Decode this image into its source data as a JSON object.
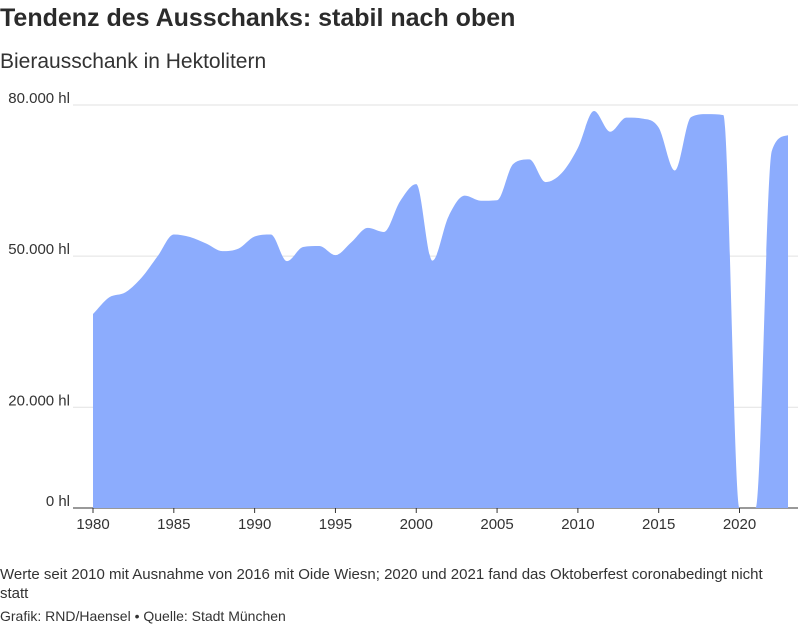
{
  "header": {
    "title": "Tendenz des Ausschanks: stabil nach oben",
    "subtitle": "Bierausschank in Hektolitern"
  },
  "footer": {
    "note": "Werte seit 2010 mit Ausnahme von 2016 mit Oide Wiesn; 2020 und 2021 fand das Oktoberfest coronabedingt nicht statt",
    "credit": "Grafik: RND/Haensel • Quelle: Stadt München"
  },
  "chart_data": {
    "type": "area",
    "title": "Tendenz des Ausschanks: stabil nach oben",
    "subtitle": "Bierausschank in Hektolitern",
    "xlabel": "",
    "ylabel": "",
    "xlim": [
      1980,
      2023
    ],
    "ylim": [
      0,
      80000
    ],
    "x_ticks": [
      1980,
      1985,
      1990,
      1995,
      2000,
      2005,
      2010,
      2015,
      2020
    ],
    "y_ticks": [
      {
        "value": 0,
        "label": "0 hl"
      },
      {
        "value": 20000,
        "label": "20.000 hl"
      },
      {
        "value": 50000,
        "label": "50.000 hl"
      },
      {
        "value": 80000,
        "label": "80.000 hl"
      }
    ],
    "grid": "horizontal",
    "color": "#8cacfd",
    "series": [
      {
        "name": "",
        "x": [
          1980,
          1981,
          1982,
          1983,
          1984,
          1985,
          1986,
          1987,
          1988,
          1989,
          1990,
          1991,
          1992,
          1993,
          1994,
          1995,
          1996,
          1997,
          1998,
          1999,
          2000,
          2001,
          2002,
          2003,
          2004,
          2005,
          2006,
          2007,
          2008,
          2009,
          2010,
          2011,
          2012,
          2013,
          2014,
          2015,
          2016,
          2017,
          2018,
          2019,
          2020,
          2021,
          2022,
          2023
        ],
        "values": [
          38500,
          41800,
          42800,
          45700,
          50000,
          54300,
          53800,
          52500,
          51000,
          51500,
          53900,
          54300,
          49000,
          51800,
          52000,
          50200,
          52800,
          55600,
          54800,
          60900,
          64300,
          49100,
          57900,
          62000,
          61000,
          61100,
          68300,
          69200,
          64700,
          66500,
          71500,
          78800,
          74700,
          77500,
          77300,
          75500,
          67000,
          77600,
          78200,
          78000,
          0,
          0,
          70900,
          74000
        ]
      }
    ]
  }
}
